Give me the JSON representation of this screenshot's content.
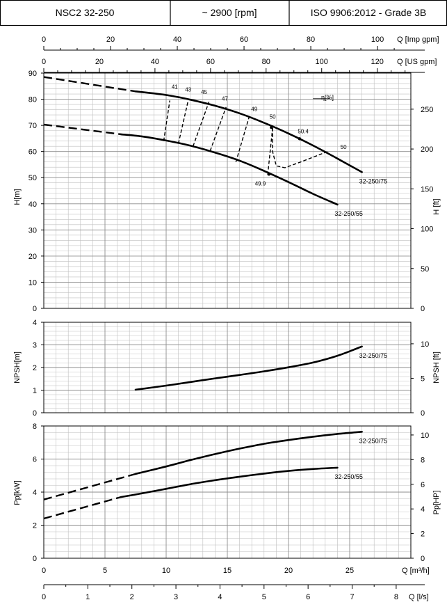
{
  "header": {
    "model": "NSC2 32-250",
    "speed": "~ 2900 [rpm]",
    "standard": "ISO 9906:2012 - Grade 3B"
  },
  "colors": {
    "ink": "#000000",
    "grid": "#bfbfbf",
    "grid_major": "#8c8c8c",
    "background": "#ffffff"
  },
  "chart_data": [
    {
      "id": "head",
      "type": "line",
      "ylabel": "H[m]",
      "ylabel_right": "H [ft]",
      "ylim": [
        0,
        90
      ],
      "yticks": [
        "0",
        "10",
        "20",
        "30",
        "40",
        "50",
        "60",
        "70",
        "80",
        "90"
      ],
      "yticks_right": [
        "0",
        "50",
        "100",
        "150",
        "200",
        "250"
      ],
      "xlim_m3h": [
        0,
        30
      ],
      "top_axis_imp": {
        "label": "Q [Imp gpm]",
        "ticks": [
          "0",
          "20",
          "40",
          "60",
          "80",
          "100"
        ]
      },
      "top_axis_us": {
        "label": "Q [US gpm]",
        "ticks": [
          "0",
          "20",
          "40",
          "60",
          "80",
          "100",
          "120"
        ]
      },
      "series": [
        {
          "name": "32-250/75",
          "dashed_x": [
            0,
            7.5
          ],
          "dashed_y": [
            88.5,
            83.0
          ],
          "x": [
            7.5,
            10,
            12,
            14,
            16,
            18,
            20,
            22,
            24,
            26
          ],
          "y": [
            83.0,
            81.6,
            79.8,
            77.5,
            74.6,
            71.0,
            66.9,
            62.3,
            57.3,
            52.1
          ]
        },
        {
          "name": "32-250/55",
          "dashed_x": [
            0,
            6.3
          ],
          "dashed_y": [
            70.3,
            66.6
          ],
          "x": [
            6.3,
            8,
            10,
            12,
            14,
            16,
            18,
            20,
            22,
            24
          ],
          "y": [
            66.6,
            65.8,
            64.2,
            62.2,
            59.6,
            56.5,
            52.6,
            48.3,
            43.8,
            39.7
          ]
        }
      ],
      "efficiency": {
        "label": "η[%]",
        "isolines": [
          {
            "value": "41",
            "lower": [
              9.8,
              64.0
            ],
            "upper": [
              10.3,
              79.5
            ]
          },
          {
            "value": "43",
            "lower": [
              11.0,
              63.0
            ],
            "upper": [
              11.8,
              79.5
            ]
          },
          {
            "value": "45",
            "lower": [
              12.2,
              62.0
            ],
            "upper": [
              13.5,
              79.0
            ]
          },
          {
            "value": "47",
            "lower": [
              13.6,
              60.3
            ],
            "upper": [
              14.9,
              77.0
            ]
          },
          {
            "value": "49",
            "lower": [
              15.7,
              56.0
            ],
            "upper": [
              16.8,
              73.5
            ]
          },
          {
            "value": "50",
            "lower": [
              18.3,
              51.0
            ],
            "upper": [
              18.7,
              69.0
            ]
          }
        ],
        "loop_50": {
          "x": [
            18.7,
            18.7,
            19.0,
            19.7,
            21.0,
            23.2
          ],
          "y": [
            69.0,
            60.0,
            54.5,
            53.8,
            56.0,
            60.0
          ]
        },
        "labels": [
          {
            "text": "41",
            "x": 10.7,
            "y": 84.0
          },
          {
            "text": "43",
            "x": 11.8,
            "y": 83.0
          },
          {
            "text": "45",
            "x": 13.1,
            "y": 82.0
          },
          {
            "text": "47",
            "x": 14.8,
            "y": 79.5
          },
          {
            "text": "49",
            "x": 17.2,
            "y": 75.5
          },
          {
            "text": "50",
            "x": 18.7,
            "y": 72.5
          },
          {
            "text": "50.4",
            "x": 21.2,
            "y": 67.0
          },
          {
            "text": "50",
            "x": 24.5,
            "y": 61.0
          },
          {
            "text": "49.9",
            "x": 17.7,
            "y": 47.0
          }
        ],
        "bep_points": [
          [
            18.6,
            69.2
          ],
          [
            20.9,
            64.9
          ],
          [
            18.4,
            51.3
          ]
        ]
      }
    },
    {
      "id": "npsh",
      "type": "line",
      "ylabel": "NPSH[m]",
      "ylabel_right": "NPSH [ft]",
      "ylim": [
        0,
        4
      ],
      "yticks": [
        "0",
        "1",
        "2",
        "3",
        "4"
      ],
      "yticks_right": [
        "0",
        "5",
        "10"
      ],
      "xlim_m3h": [
        0,
        30
      ],
      "series": [
        {
          "name": "32-250/75",
          "x": [
            7.5,
            10,
            12,
            14,
            16,
            18,
            20,
            22,
            24,
            26
          ],
          "y": [
            1.02,
            1.2,
            1.36,
            1.52,
            1.67,
            1.83,
            2.01,
            2.22,
            2.52,
            2.93
          ]
        }
      ]
    },
    {
      "id": "power",
      "type": "line",
      "ylabel": "Pp[kW]",
      "ylabel_right": "Pp[HP]",
      "ylim": [
        0,
        8
      ],
      "yticks": [
        "0",
        "2",
        "4",
        "6",
        "8"
      ],
      "yticks_right": [
        "0",
        "2",
        "4",
        "6",
        "8",
        "10"
      ],
      "xlabel": "Q [m³/h]",
      "xticks": [
        "0",
        "5",
        "10",
        "15",
        "20",
        "25"
      ],
      "bottom_axis_ls": {
        "label": "Q [l/s]",
        "ticks": [
          "0",
          "1",
          "2",
          "3",
          "4",
          "5",
          "6",
          "7",
          "8"
        ]
      },
      "xlim_m3h": [
        0,
        30
      ],
      "series": [
        {
          "name": "32-250/75",
          "dashed_x": [
            0,
            7.5
          ],
          "dashed_y": [
            3.55,
            5.1
          ],
          "x": [
            7.5,
            10,
            12,
            14,
            16,
            18,
            20,
            22,
            24,
            26
          ],
          "y": [
            5.1,
            5.55,
            5.94,
            6.3,
            6.63,
            6.92,
            7.15,
            7.35,
            7.52,
            7.65
          ]
        },
        {
          "name": "32-250/55",
          "dashed_x": [
            0,
            6.3
          ],
          "dashed_y": [
            2.4,
            3.7
          ],
          "x": [
            6.3,
            8,
            10,
            12,
            14,
            16,
            18,
            20,
            22,
            24
          ],
          "y": [
            3.7,
            3.92,
            4.2,
            4.48,
            4.72,
            4.93,
            5.12,
            5.28,
            5.4,
            5.48
          ]
        }
      ]
    }
  ]
}
